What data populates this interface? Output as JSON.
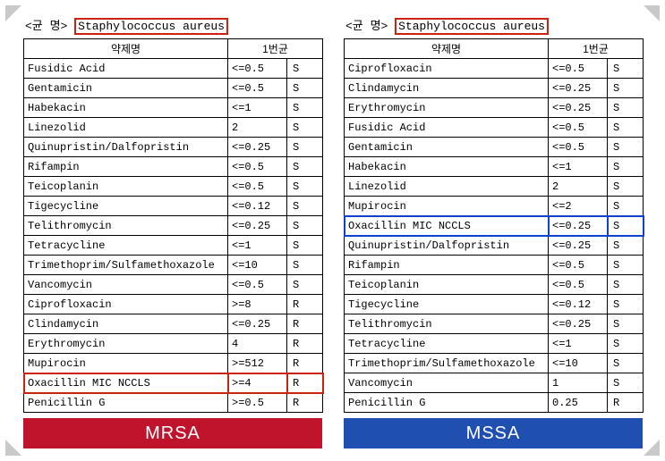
{
  "corner_color": "#c9c9c9",
  "left": {
    "header_prefix": "<균  명>",
    "organism": "Staphylococcus aureus",
    "organism_highlight": "red",
    "col_headers": {
      "drug": "약제명",
      "mic": "1번균"
    },
    "rows": [
      {
        "drug": "Fusidic Acid",
        "mic": "<=0.5",
        "sr": "S"
      },
      {
        "drug": "Gentamicin",
        "mic": "<=0.5",
        "sr": "S"
      },
      {
        "drug": "Habekacin",
        "mic": "<=1",
        "sr": "S"
      },
      {
        "drug": "Linezolid",
        "mic": "2",
        "sr": "S"
      },
      {
        "drug": "Quinupristin/Dalfopristin",
        "mic": "<=0.25",
        "sr": "S"
      },
      {
        "drug": "Rifampin",
        "mic": "<=0.5",
        "sr": "S"
      },
      {
        "drug": "Teicoplanin",
        "mic": "<=0.5",
        "sr": "S"
      },
      {
        "drug": "Tigecycline",
        "mic": "<=0.12",
        "sr": "S"
      },
      {
        "drug": "Telithromycin",
        "mic": "<=0.25",
        "sr": "S"
      },
      {
        "drug": "Tetracycline",
        "mic": "<=1",
        "sr": "S"
      },
      {
        "drug": "Trimethoprim/Sulfamethoxazole",
        "mic": "<=10",
        "sr": "S"
      },
      {
        "drug": "Vancomycin",
        "mic": "<=0.5",
        "sr": "S"
      },
      {
        "drug": "Ciprofloxacin",
        "mic": ">=8",
        "sr": "R"
      },
      {
        "drug": "Clindamycin",
        "mic": "<=0.25",
        "sr": "R"
      },
      {
        "drug": "Erythromycin",
        "mic": "4",
        "sr": "R"
      },
      {
        "drug": "Mupirocin",
        "mic": ">=512",
        "sr": "R"
      },
      {
        "drug": "Oxacillin MIC NCCLS",
        "mic": ">=4",
        "sr": "R",
        "highlight": "red"
      },
      {
        "drug": "Penicillin G",
        "mic": ">=0.5",
        "sr": "R"
      }
    ],
    "footer_label": "MRSA",
    "footer_color": "#c0142c"
  },
  "right": {
    "header_prefix": "<균  명>",
    "organism": " Staphylococcus aureus ",
    "organism_highlight": "red",
    "col_headers": {
      "drug": "약제명",
      "mic": "1번균"
    },
    "rows": [
      {
        "drug": "Ciprofloxacin",
        "mic": "<=0.5",
        "sr": "S"
      },
      {
        "drug": "Clindamycin",
        "mic": "<=0.25",
        "sr": "S"
      },
      {
        "drug": "Erythromycin",
        "mic": "<=0.25",
        "sr": "S"
      },
      {
        "drug": "Fusidic Acid",
        "mic": "<=0.5",
        "sr": "S"
      },
      {
        "drug": "Gentamicin",
        "mic": "<=0.5",
        "sr": "S"
      },
      {
        "drug": "Habekacin",
        "mic": "<=1",
        "sr": "S"
      },
      {
        "drug": "Linezolid",
        "mic": "2",
        "sr": "S"
      },
      {
        "drug": "Mupirocin",
        "mic": "<=2",
        "sr": "S"
      },
      {
        "drug": "Oxacillin MIC NCCLS",
        "mic": "<=0.25",
        "sr": "S",
        "highlight": "blue"
      },
      {
        "drug": "Quinupristin/Dalfopristin",
        "mic": "<=0.25",
        "sr": "S"
      },
      {
        "drug": "Rifampin",
        "mic": "<=0.5",
        "sr": "S"
      },
      {
        "drug": "Teicoplanin",
        "mic": "<=0.5",
        "sr": "S"
      },
      {
        "drug": "Tigecycline",
        "mic": "<=0.12",
        "sr": "S"
      },
      {
        "drug": "Telithromycin",
        "mic": "<=0.25",
        "sr": "S"
      },
      {
        "drug": "Tetracycline",
        "mic": "<=1",
        "sr": "S"
      },
      {
        "drug": "Trimethoprim/Sulfamethoxazole",
        "mic": "<=10",
        "sr": "S"
      },
      {
        "drug": "Vancomycin",
        "mic": "1",
        "sr": "S"
      },
      {
        "drug": "Penicillin G",
        "mic": "0.25",
        "sr": "R"
      }
    ],
    "footer_label": "MSSA",
    "footer_color": "#1f4fb0"
  }
}
